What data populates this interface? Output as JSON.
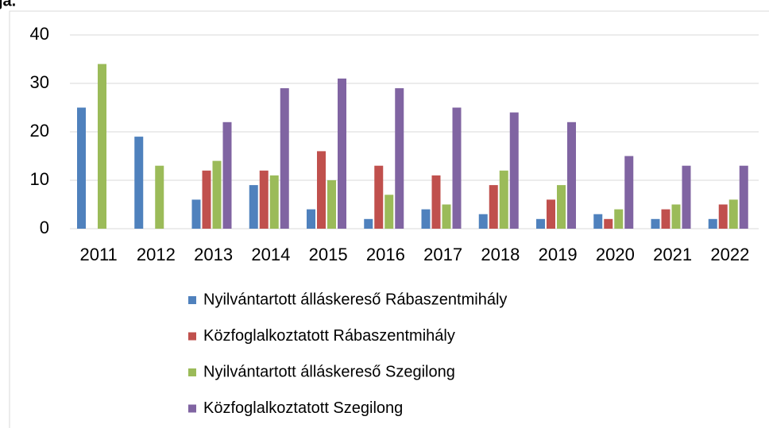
{
  "chart_data": {
    "type": "bar",
    "title": "ja.",
    "categories": [
      "2011",
      "2012",
      "2013",
      "2014",
      "2015",
      "2016",
      "2017",
      "2018",
      "2019",
      "2020",
      "2021",
      "2022"
    ],
    "series": [
      {
        "name": "Nyilvántartott álláskereső Rábaszentmihály",
        "color": "#4f81bd",
        "values": [
          25,
          19,
          6,
          9,
          4,
          2,
          4,
          3,
          2,
          3,
          2,
          2
        ]
      },
      {
        "name": "Közfoglalkoztatott Rábaszentmihály",
        "color": "#c0504d",
        "values": [
          null,
          null,
          12,
          12,
          16,
          13,
          11,
          9,
          6,
          2,
          4,
          5
        ]
      },
      {
        "name": "Nyilvántartott álláskereső Szegilong",
        "color": "#9bbb59",
        "values": [
          34,
          13,
          14,
          11,
          10,
          7,
          5,
          12,
          9,
          4,
          5,
          6
        ]
      },
      {
        "name": "Közfoglalkoztatott Szegilong",
        "color": "#8064a2",
        "values": [
          null,
          null,
          22,
          29,
          31,
          29,
          25,
          24,
          22,
          15,
          13,
          13
        ]
      }
    ],
    "ylim": [
      0,
      40
    ],
    "yticks": [
      0,
      10,
      20,
      30,
      40
    ],
    "grid": true,
    "legend": "bottom"
  }
}
